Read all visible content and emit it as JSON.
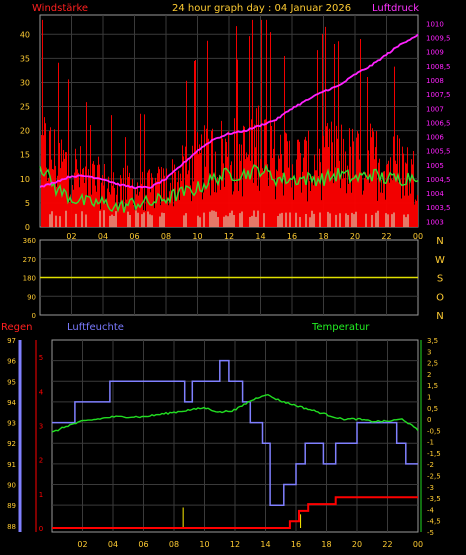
{
  "header": {
    "title": "24 hour graph day : 04 Januar 2026",
    "left_label": "Windstärke",
    "right_label": "Luftdruck"
  },
  "colors": {
    "background": "#000000",
    "grid": "#3a3a3a",
    "axis_text": "#ffcc33",
    "wind_label": "#ff2020",
    "pressure_label": "#ff33ff",
    "rain_label": "#ff2020",
    "humidity_label": "#7b7bff",
    "temperature_label": "#22ee22",
    "wind": "#ff0000",
    "gust_avg": "#33dd33",
    "pressure": "#ff22ff",
    "calm_bars": "#d8f0d0",
    "direction": "#e0e000",
    "humidity": "#8080ff",
    "temperature": "#22dd22",
    "rain": "#ff0000",
    "rain_rate": "#ffee00"
  },
  "chart_data": [
    {
      "type": "bar",
      "name": "wind-pressure",
      "x_ticks": [
        "02",
        "04",
        "06",
        "08",
        "10",
        "12",
        "14",
        "16",
        "18",
        "20",
        "22",
        "00"
      ],
      "y_left_ticks": [
        "40",
        "35",
        "30",
        "25",
        "20",
        "15",
        "10",
        "5",
        "0"
      ],
      "y_left_range": [
        0,
        44
      ],
      "y_right_ticks": [
        "1010",
        "1009,5",
        "1009",
        "1008,5",
        "1008",
        "1007,5",
        "1007",
        "1006,5",
        "1006",
        "1005,5",
        "1005",
        "1004,5",
        "1004",
        "1003,5",
        "1003"
      ],
      "y_right_range": [
        1002.8,
        1010.3
      ],
      "pressure": {
        "hours": [
          0,
          1,
          2,
          3,
          4,
          5,
          6,
          7,
          8,
          9,
          10,
          11,
          12,
          13,
          14,
          15,
          16,
          17,
          18,
          19,
          20,
          21,
          22,
          23,
          24
        ],
        "values": [
          1004.2,
          1004.4,
          1004.6,
          1004.6,
          1004.5,
          1004.3,
          1004.2,
          1004.2,
          1004.5,
          1005.0,
          1005.5,
          1005.9,
          1006.1,
          1006.2,
          1006.4,
          1006.6,
          1007.0,
          1007.3,
          1007.6,
          1007.8,
          1008.2,
          1008.5,
          1008.9,
          1009.3,
          1009.6
        ]
      },
      "wind_envelope": {
        "hours": [
          0,
          1,
          2,
          3,
          4,
          5,
          6,
          7,
          8,
          9,
          10,
          11,
          12,
          13,
          14,
          15,
          16,
          17,
          18,
          19,
          20,
          21,
          22,
          23,
          24
        ],
        "values": [
          26,
          22,
          19,
          16,
          14,
          13,
          13,
          12,
          14,
          17,
          20,
          23,
          24,
          23,
          30,
          22,
          21,
          20,
          22,
          23,
          21,
          22,
          21,
          20,
          16
        ]
      },
      "gust_avg": {
        "hours": [
          0,
          1,
          2,
          3,
          4,
          5,
          6,
          7,
          8,
          9,
          10,
          11,
          12,
          13,
          14,
          15,
          16,
          17,
          18,
          19,
          20,
          21,
          22,
          23,
          24
        ],
        "values": [
          13,
          8,
          6,
          5,
          5,
          4,
          5,
          5,
          6,
          7,
          8,
          10,
          11,
          11,
          12,
          10,
          10,
          10,
          10,
          11,
          10,
          11,
          10,
          10,
          11
        ]
      }
    },
    {
      "type": "line",
      "name": "wind-direction",
      "y_ticks": [
        "360",
        "270",
        "180",
        "90",
        "0"
      ],
      "y_range": [
        0,
        360
      ],
      "direction_labels": [
        "N",
        "W",
        "S",
        "O",
        "N"
      ],
      "direction": {
        "hours": [
          0,
          24
        ],
        "values": [
          180,
          180
        ]
      }
    },
    {
      "type": "line",
      "name": "rain-humidity-temperature",
      "labels": {
        "rain": "Regen",
        "humidity": "Luftfeuchte",
        "temperature": "Temperatur"
      },
      "humidity_ticks": [
        "97",
        "96",
        "95",
        "94",
        "93",
        "92",
        "91",
        "90",
        "89",
        "88"
      ],
      "humidity_range": [
        87.7,
        97.0
      ],
      "rain_ticks": [
        "5",
        "4",
        "3",
        "2",
        "1",
        "0"
      ],
      "rain_range": [
        0,
        5.5
      ],
      "temp_ticks": [
        "3,5",
        "3",
        "2,5",
        "2",
        "1,5",
        "1",
        "0,5",
        "0",
        "-0,5",
        "-1",
        "-1,5",
        "-2",
        "-2,5",
        "-3",
        "-3,5",
        "-4",
        "-4,5",
        "-5"
      ],
      "temp_range": [
        -5.0,
        3.5
      ],
      "humidity": {
        "hours": [
          0,
          1.5,
          1.5,
          3.8,
          3.8,
          8.7,
          8.7,
          9.2,
          9.2,
          11.0,
          11.0,
          11.6,
          11.6,
          12.5,
          12.5,
          13.0,
          13.0,
          13.8,
          13.8,
          14.3,
          14.3,
          15.2,
          15.2,
          16.0,
          16.0,
          16.6,
          16.6,
          17.8,
          17.8,
          18.6,
          18.6,
          20.0,
          20.0,
          22.6,
          22.6,
          23.2,
          23.2,
          24
        ],
        "values": [
          93,
          93,
          94,
          94,
          95,
          95,
          94,
          94,
          95,
          95,
          96,
          96,
          95,
          95,
          94,
          94,
          93,
          93,
          92,
          92,
          89,
          89,
          90,
          90,
          91,
          91,
          92,
          92,
          91,
          91,
          92,
          92,
          93,
          93,
          92,
          92,
          91,
          91
        ]
      },
      "temperature": {
        "hours": [
          0,
          1,
          2,
          3,
          4,
          5,
          6,
          7,
          8,
          9,
          10,
          11,
          12,
          13,
          14,
          15,
          16,
          17,
          18,
          19,
          20,
          21,
          22,
          23,
          24
        ],
        "values": [
          -0.6,
          -0.3,
          -0.1,
          0.0,
          0.1,
          0.1,
          0.1,
          0.2,
          0.3,
          0.4,
          0.5,
          0.3,
          0.4,
          0.8,
          1.1,
          0.8,
          0.6,
          0.4,
          0.2,
          0.0,
          0.0,
          -0.1,
          -0.1,
          0.0,
          -0.5
        ]
      },
      "rain": {
        "hours": [
          0,
          15.6,
          15.6,
          16.2,
          16.2,
          16.8,
          16.8,
          18.6,
          18.6,
          24
        ],
        "values": [
          0,
          0,
          0.2,
          0.2,
          0.5,
          0.5,
          0.7,
          0.7,
          0.9,
          0.9
        ]
      },
      "rain_rate_spikes": [
        {
          "hour": 8.6,
          "value": 0.6
        },
        {
          "hour": 16.3,
          "value": 0.4
        }
      ]
    }
  ]
}
